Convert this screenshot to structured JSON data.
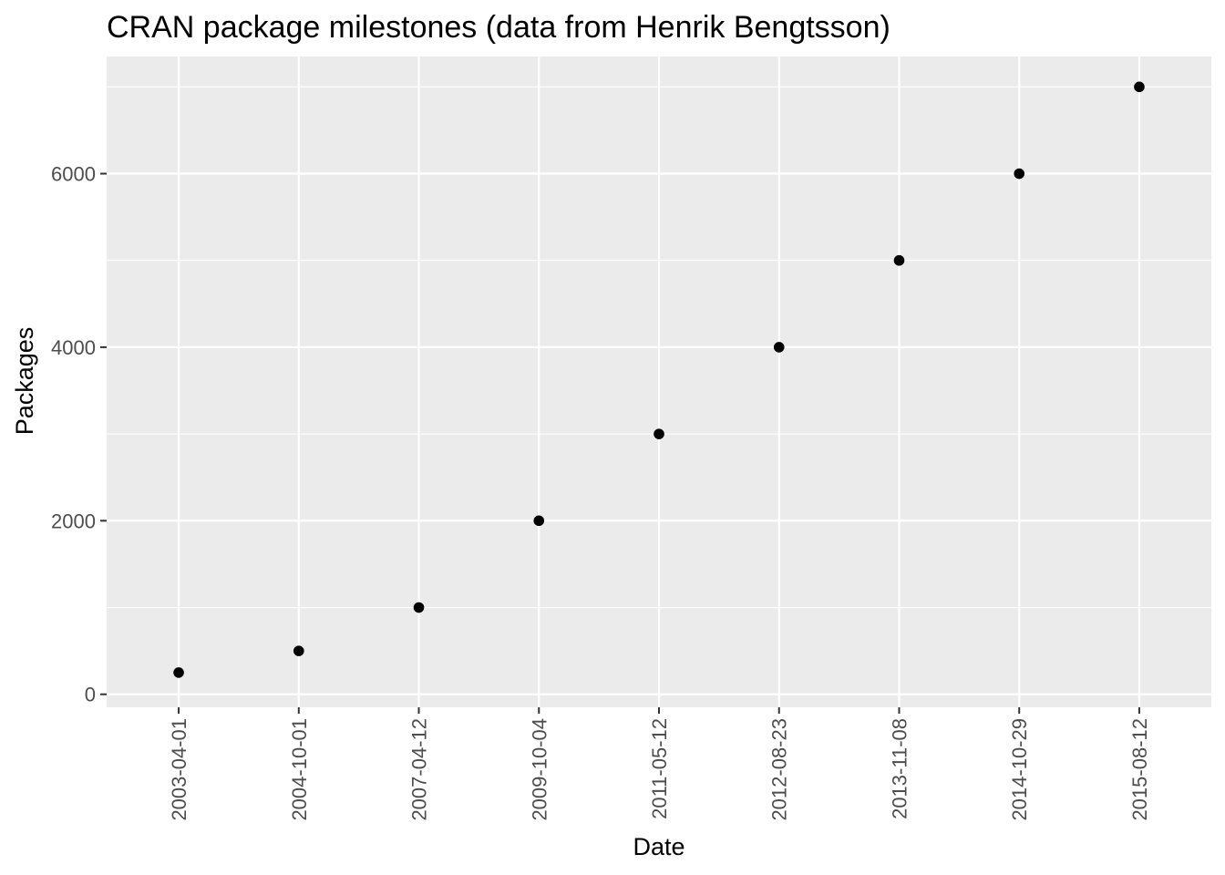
{
  "chart_data": {
    "type": "scatter",
    "title": "CRAN package milestones (data from Henrik Bengtsson)",
    "xlabel": "Date",
    "ylabel": "Packages",
    "x_axis_type": "categorical-dates",
    "categories": [
      "2003-04-01",
      "2004-10-01",
      "2007-04-12",
      "2009-10-04",
      "2011-05-12",
      "2012-08-23",
      "2013-11-08",
      "2014-10-29",
      "2015-08-12"
    ],
    "values": [
      250,
      500,
      1000,
      2000,
      3000,
      4000,
      5000,
      6000,
      7000
    ],
    "ylim": [
      -150,
      7350
    ],
    "y_ticks": [
      0,
      2000,
      4000,
      6000
    ],
    "y_minor_ticks": [
      1000,
      3000,
      5000,
      7000
    ],
    "grid": true,
    "legend": "none",
    "colors": {
      "panel_background": "#ebebeb",
      "grid_line": "#ffffff",
      "point": "#000000",
      "tick_label": "#4d4d4d",
      "tick_mark": "#333333"
    }
  }
}
